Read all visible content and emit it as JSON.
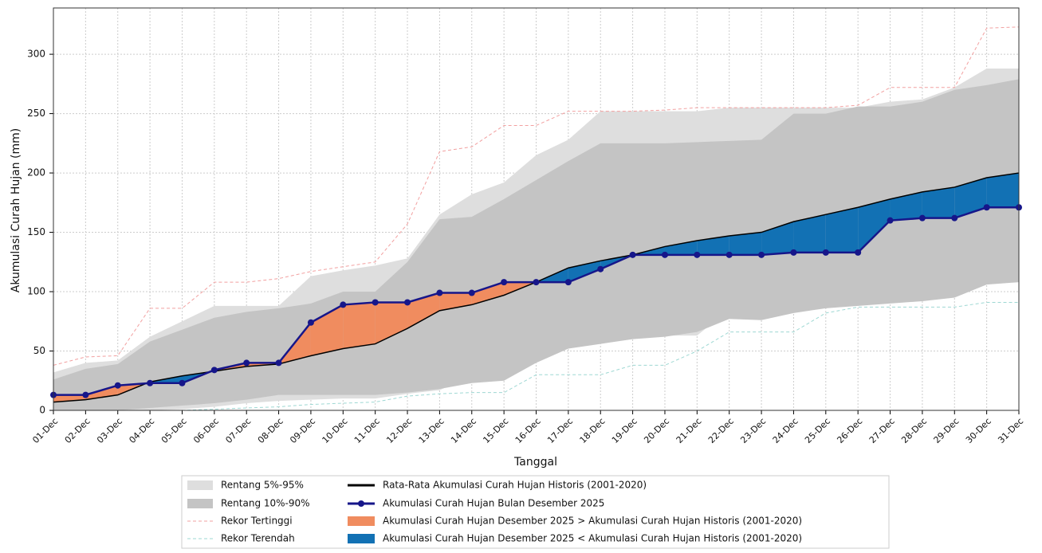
{
  "chart_data": {
    "type": "line",
    "xlabel": "Tanggal",
    "ylabel": "Akumulasi Curah Hujan (mm)",
    "categories": [
      "01-Dec",
      "02-Dec",
      "03-Dec",
      "04-Dec",
      "05-Dec",
      "06-Dec",
      "07-Dec",
      "08-Dec",
      "09-Dec",
      "10-Dec",
      "11-Dec",
      "12-Dec",
      "13-Dec",
      "14-Dec",
      "15-Dec",
      "16-Dec",
      "17-Dec",
      "18-Dec",
      "19-Dec",
      "20-Dec",
      "21-Dec",
      "22-Dec",
      "23-Dec",
      "24-Dec",
      "25-Dec",
      "26-Dec",
      "27-Dec",
      "28-Dec",
      "29-Dec",
      "30-Dec",
      "31-Dec"
    ],
    "ylim": [
      0,
      339
    ],
    "yticks": [
      0,
      50,
      100,
      150,
      200,
      250,
      300
    ],
    "grid": true,
    "bands": [
      {
        "name": "Rentang 5%-95%",
        "color": "#dedede",
        "lower": [
          0,
          0,
          0,
          0,
          1,
          3,
          6,
          8,
          9,
          10,
          10,
          14,
          17,
          29,
          29,
          48,
          55,
          62,
          63,
          63,
          63,
          85,
          85,
          86,
          86,
          90,
          93,
          95,
          104,
          110,
          110
        ],
        "upper": [
          32,
          40,
          42,
          62,
          75,
          88,
          88,
          88,
          113,
          118,
          122,
          128,
          165,
          182,
          192,
          215,
          228,
          252,
          252,
          252,
          252,
          255,
          255,
          255,
          255,
          255,
          260,
          262,
          272,
          288,
          288
        ]
      },
      {
        "name": "Rentang 10%-90%",
        "color": "#c4c4c4",
        "lower": [
          0,
          0,
          0,
          2,
          4,
          6,
          9,
          13,
          13,
          13,
          13,
          15,
          18,
          23,
          25,
          40,
          52,
          56,
          60,
          62,
          66,
          77,
          76,
          82,
          86,
          88,
          90,
          92,
          95,
          106,
          108
        ],
        "upper": [
          26,
          35,
          39,
          58,
          68,
          78,
          83,
          86,
          90,
          100,
          100,
          125,
          161,
          163,
          178,
          194,
          210,
          225,
          225,
          225,
          226,
          227,
          228,
          250,
          250,
          256,
          256,
          260,
          270,
          274,
          279
        ]
      }
    ],
    "series": [
      {
        "name": "Rekor Tertinggi",
        "color": "#f2a0a0",
        "dashed": true,
        "values": [
          38,
          45,
          46,
          86,
          86,
          108,
          108,
          111,
          117,
          121,
          125,
          157,
          218,
          222,
          240,
          240,
          252,
          252,
          252,
          253,
          255,
          255,
          255,
          255,
          255,
          257,
          272,
          272,
          272,
          322,
          323
        ]
      },
      {
        "name": "Rekor Terendah",
        "color": "#9ed8d3",
        "dashed": true,
        "values": [
          0,
          0,
          0,
          0,
          0,
          1,
          2,
          3,
          5,
          6,
          7,
          12,
          14,
          15,
          15,
          30,
          30,
          30,
          38,
          38,
          50,
          66,
          66,
          66,
          82,
          87,
          87,
          87,
          87,
          91,
          91
        ]
      },
      {
        "name": "Rata-Rata Akumulasi Curah Hujan Historis (2001-2020)",
        "color": "#000000",
        "values": [
          7,
          9,
          13,
          24,
          29,
          33,
          37,
          39,
          46,
          52,
          56,
          69,
          84,
          89,
          97,
          108,
          120,
          126,
          131,
          138,
          143,
          147,
          150,
          159,
          165,
          171,
          178,
          184,
          188,
          196,
          200
        ]
      },
      {
        "name": "Akumulasi Curah Hujan Bulan Desember 2025",
        "color": "#16168a",
        "markers": true,
        "values": [
          13,
          13,
          21,
          23,
          23,
          34,
          40,
          40,
          74,
          89,
          91,
          91,
          99,
          99,
          108,
          108,
          108,
          119,
          131,
          131,
          131,
          131,
          131,
          133,
          133,
          133,
          160,
          162,
          162,
          171,
          171
        ]
      }
    ],
    "fills": [
      {
        "name": "Akumulasi Curah Hujan Desember 2025 > Akumulasi Curah Hujan Historis (2001-2020)",
        "color": "#f08c5f"
      },
      {
        "name": "Akumulasi Curah Hujan Desember 2025 < Akumulasi Curah Hujan Historis (2001-2020)",
        "color": "#1271b4"
      }
    ]
  }
}
